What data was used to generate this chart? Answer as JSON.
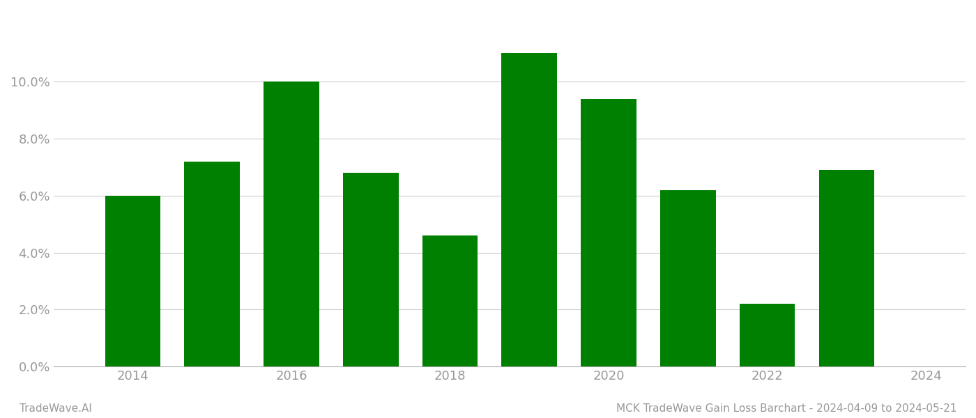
{
  "years": [
    2014,
    2015,
    2016,
    2017,
    2018,
    2019,
    2020,
    2021,
    2022,
    2023
  ],
  "values": [
    0.06,
    0.072,
    0.1,
    0.068,
    0.046,
    0.11,
    0.094,
    0.062,
    0.022,
    0.069
  ],
  "bar_color": "#008000",
  "background_color": "#ffffff",
  "ylim": [
    0,
    0.125
  ],
  "yticks": [
    0.0,
    0.02,
    0.04,
    0.06,
    0.08,
    0.1
  ],
  "grid_color": "#cccccc",
  "footer_left": "TradeWave.AI",
  "footer_right": "MCK TradeWave Gain Loss Barchart - 2024-04-09 to 2024-05-21",
  "tick_label_color": "#999999",
  "bar_width": 0.7,
  "xticks": [
    2014,
    2016,
    2018,
    2020,
    2022,
    2024
  ],
  "xlim_left": 2013.0,
  "xlim_right": 2024.5
}
